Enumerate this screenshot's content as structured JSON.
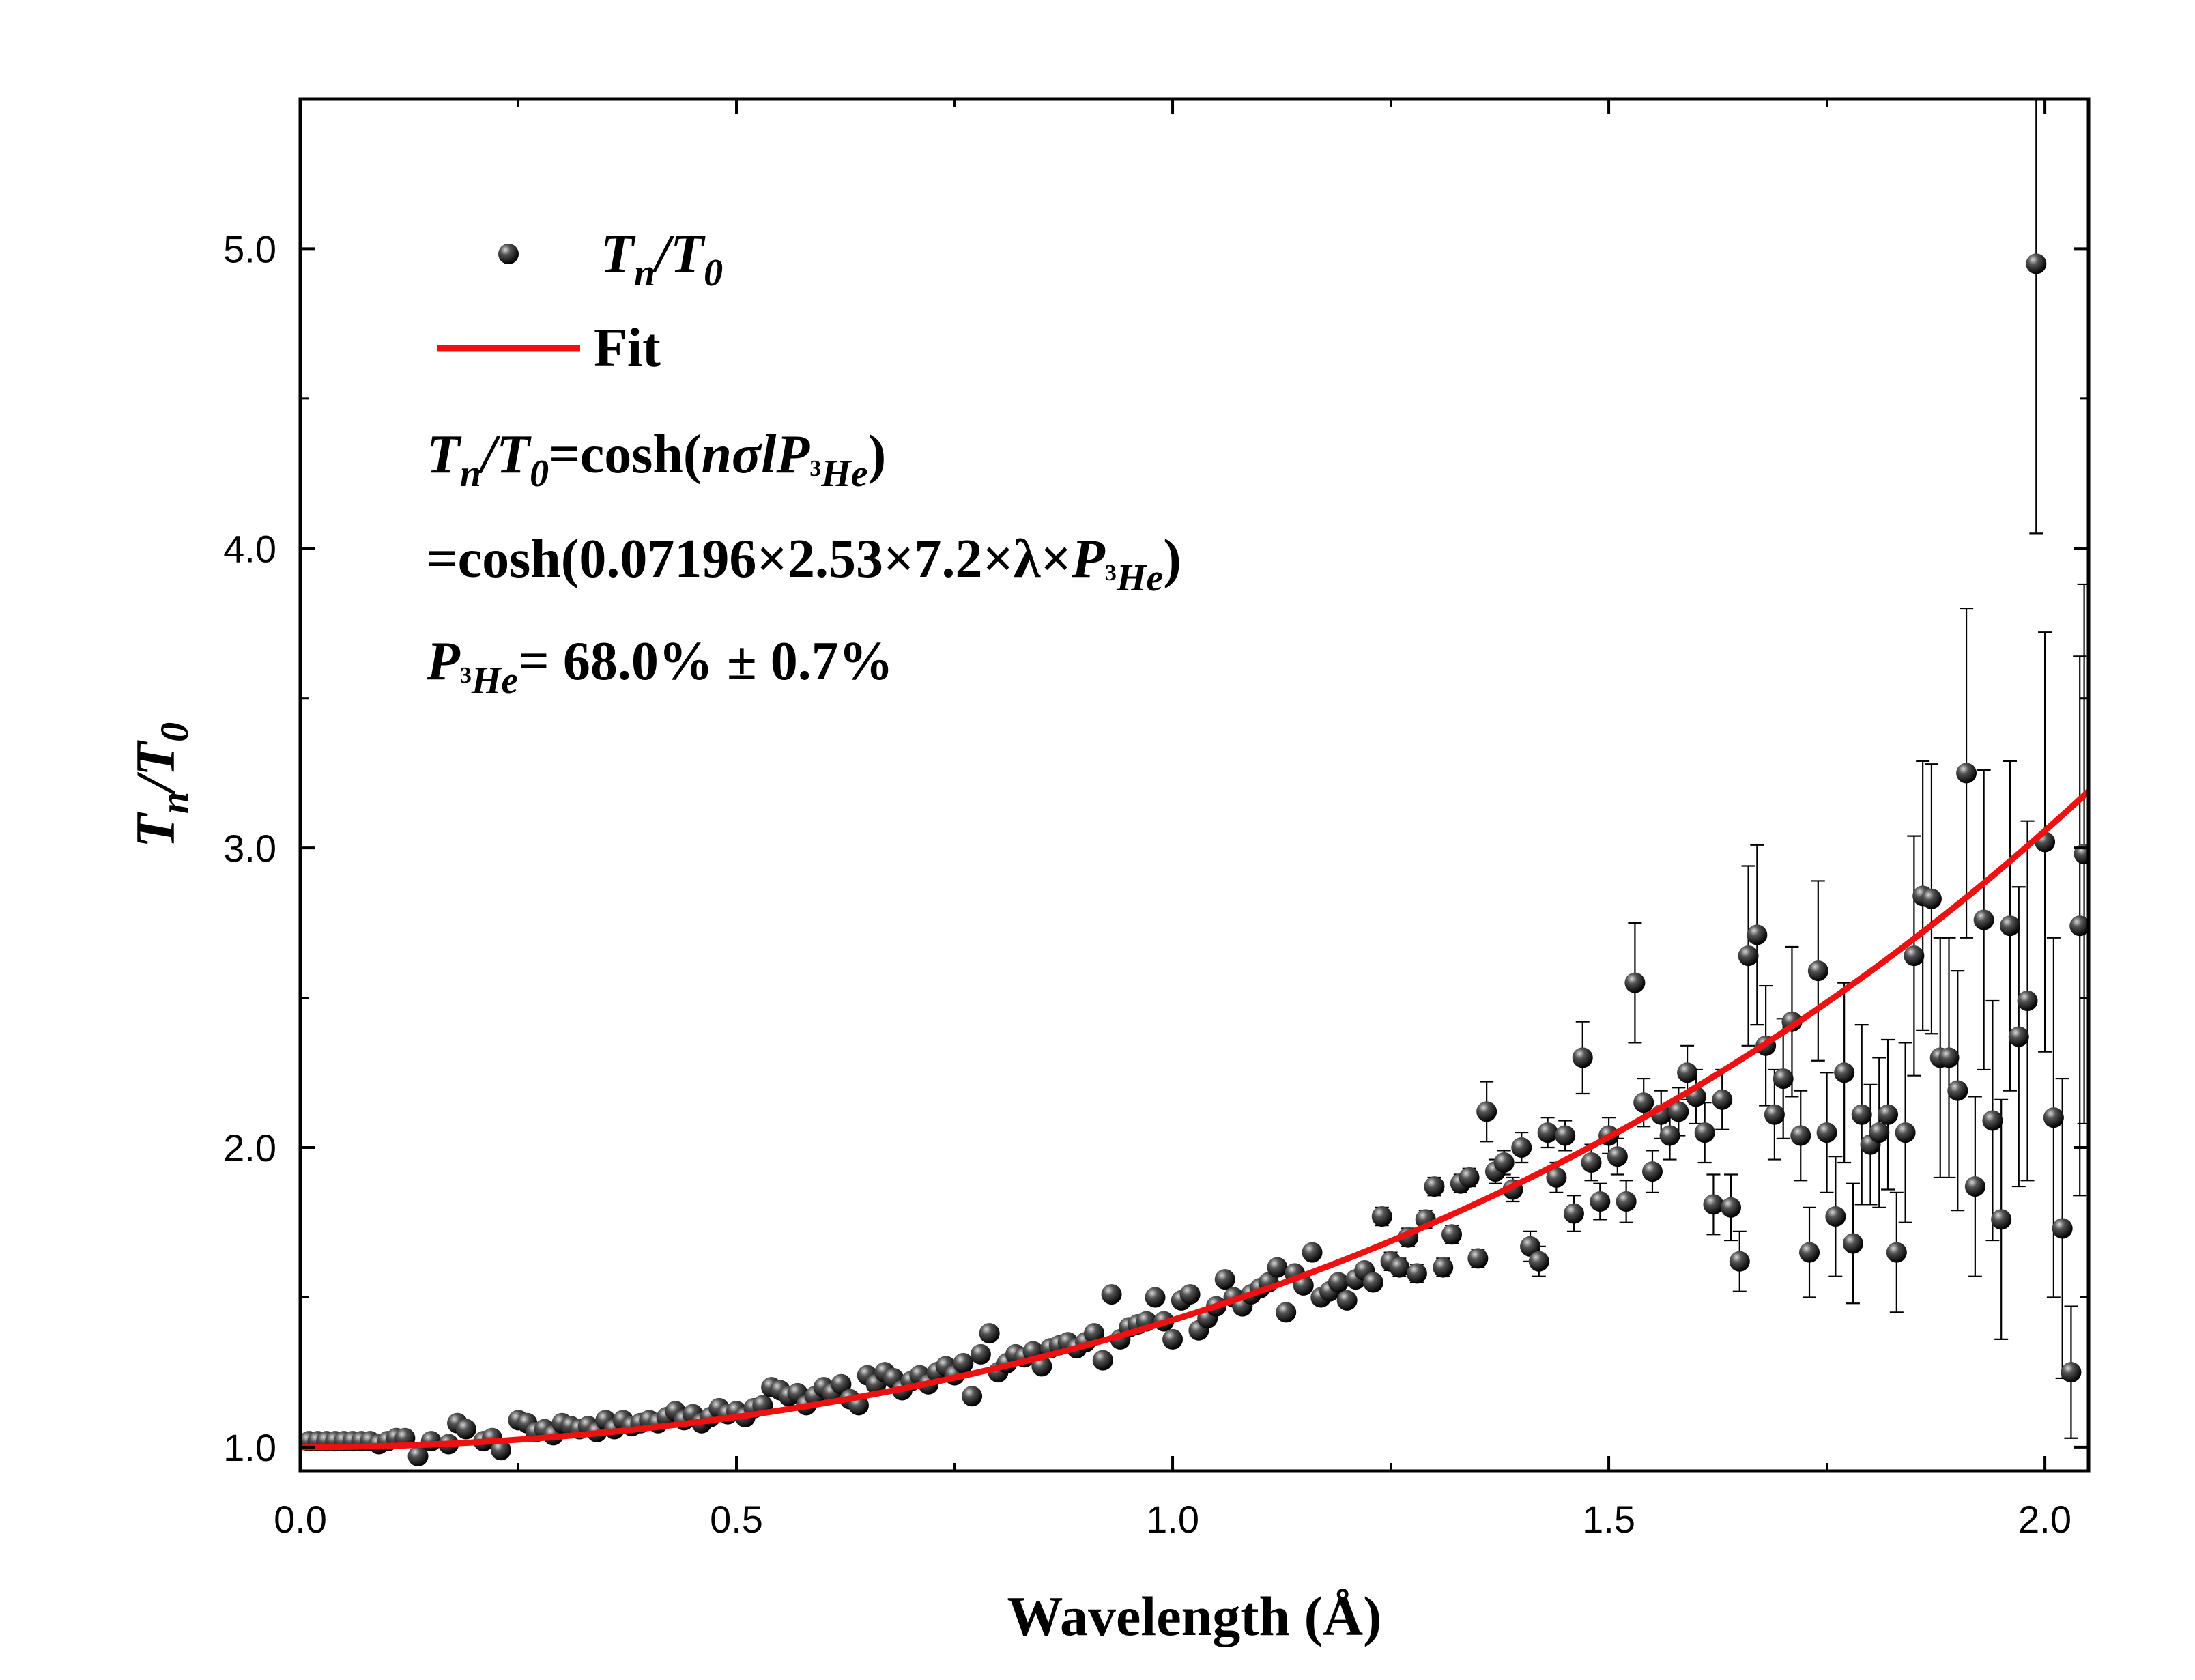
{
  "chart_data": {
    "type": "scatter",
    "title": "",
    "xlabel": "Wavelength (Å)",
    "ylabel": {
      "main": "T",
      "sub_n": "n",
      "slash": "/",
      "main2": "T",
      "sub_0": "0"
    },
    "xlim": [
      0.0,
      2.05
    ],
    "ylim": [
      0.92,
      5.5
    ],
    "x_ticks": [
      0.0,
      0.5,
      1.0,
      1.5,
      2.0
    ],
    "x_tick_labels": [
      "0.0",
      "0.5",
      "1.0",
      "1.5",
      "2.0"
    ],
    "y_ticks": [
      1.0,
      2.0,
      3.0,
      4.0,
      5.0
    ],
    "y_tick_labels": [
      "1.0",
      "2.0",
      "3.0",
      "4.0",
      "5.0"
    ],
    "grid": false,
    "legend_position": "top-left",
    "legend": [
      {
        "label_main": "T",
        "label_sub": "n",
        "label_mid": "/T",
        "label_sub2": "0",
        "kind": "marker",
        "color": "#111111"
      },
      {
        "label": "Fit",
        "kind": "line",
        "color": "#ee1111"
      }
    ],
    "annotations": {
      "line1": {
        "a": "T",
        "b": "n",
        "c": "/T",
        "d": "0",
        "e": "=cosh(",
        "f": "nσl",
        "g": "P",
        "h": "3",
        "i": "He",
        "j": ")"
      },
      "line2": {
        "a": "=cosh(0.07196×2.53×7.2×λ×",
        "b": "P",
        "c": "3",
        "d": "He",
        "e": ")"
      },
      "line3": {
        "a": "P",
        "b": "3",
        "c": "He",
        "d": "= 68.0% ± 0.7%"
      }
    },
    "fit": {
      "name": "Fit",
      "formula": "cosh(0.07196*2.53*7.2*lambda*P)",
      "P": 0.68,
      "coef": 0.07196,
      "coef2": 2.53,
      "coef3": 7.2,
      "color": "#ee1111"
    },
    "series": [
      {
        "name": "Tn/T0",
        "color": "#111111",
        "points": [
          [
            0.01,
            1.02,
            0.005
          ],
          [
            0.02,
            1.02,
            0.005
          ],
          [
            0.03,
            1.02,
            0.005
          ],
          [
            0.04,
            1.02,
            0.005
          ],
          [
            0.05,
            1.02,
            0.005
          ],
          [
            0.06,
            1.02,
            0.005
          ],
          [
            0.07,
            1.02,
            0.005
          ],
          [
            0.08,
            1.02,
            0.005
          ],
          [
            0.09,
            1.01,
            0.005
          ],
          [
            0.1,
            1.02,
            0.005
          ],
          [
            0.11,
            1.03,
            0.006
          ],
          [
            0.12,
            1.03,
            0.006
          ],
          [
            0.135,
            0.97,
            0.01
          ],
          [
            0.15,
            1.02,
            0.006
          ],
          [
            0.17,
            1.01,
            0.006
          ],
          [
            0.18,
            1.08,
            0.01
          ],
          [
            0.19,
            1.06,
            0.006
          ],
          [
            0.21,
            1.02,
            0.006
          ],
          [
            0.22,
            1.03,
            0.006
          ],
          [
            0.23,
            0.99,
            0.006
          ],
          [
            0.25,
            1.09,
            0.01
          ],
          [
            0.26,
            1.08,
            0.006
          ],
          [
            0.27,
            1.05,
            0.006
          ],
          [
            0.28,
            1.06,
            0.006
          ],
          [
            0.29,
            1.04,
            0.006
          ],
          [
            0.3,
            1.08,
            0.006
          ],
          [
            0.31,
            1.07,
            0.006
          ],
          [
            0.32,
            1.06,
            0.006
          ],
          [
            0.33,
            1.07,
            0.006
          ],
          [
            0.34,
            1.05,
            0.006
          ],
          [
            0.35,
            1.09,
            0.006
          ],
          [
            0.36,
            1.06,
            0.006
          ],
          [
            0.37,
            1.09,
            0.006
          ],
          [
            0.38,
            1.07,
            0.006
          ],
          [
            0.39,
            1.08,
            0.006
          ],
          [
            0.4,
            1.09,
            0.006
          ],
          [
            0.41,
            1.08,
            0.007
          ],
          [
            0.42,
            1.1,
            0.007
          ],
          [
            0.43,
            1.12,
            0.007
          ],
          [
            0.44,
            1.09,
            0.007
          ],
          [
            0.45,
            1.11,
            0.007
          ],
          [
            0.46,
            1.08,
            0.007
          ],
          [
            0.47,
            1.1,
            0.007
          ],
          [
            0.48,
            1.13,
            0.007
          ],
          [
            0.49,
            1.11,
            0.007
          ],
          [
            0.5,
            1.12,
            0.007
          ],
          [
            0.51,
            1.1,
            0.007
          ],
          [
            0.52,
            1.13,
            0.007
          ],
          [
            0.53,
            1.14,
            0.007
          ],
          [
            0.54,
            1.2,
            0.008
          ],
          [
            0.55,
            1.19,
            0.008
          ],
          [
            0.56,
            1.17,
            0.008
          ],
          [
            0.57,
            1.18,
            0.008
          ],
          [
            0.58,
            1.14,
            0.008
          ],
          [
            0.59,
            1.17,
            0.008
          ],
          [
            0.6,
            1.2,
            0.008
          ],
          [
            0.61,
            1.18,
            0.008
          ],
          [
            0.62,
            1.21,
            0.008
          ],
          [
            0.63,
            1.16,
            0.008
          ],
          [
            0.64,
            1.14,
            0.008
          ],
          [
            0.65,
            1.24,
            0.009
          ],
          [
            0.66,
            1.21,
            0.009
          ],
          [
            0.67,
            1.25,
            0.009
          ],
          [
            0.68,
            1.23,
            0.009
          ],
          [
            0.69,
            1.19,
            0.009
          ],
          [
            0.7,
            1.22,
            0.009
          ],
          [
            0.71,
            1.24,
            0.009
          ],
          [
            0.72,
            1.21,
            0.009
          ],
          [
            0.73,
            1.25,
            0.009
          ],
          [
            0.74,
            1.27,
            0.009
          ],
          [
            0.75,
            1.24,
            0.01
          ],
          [
            0.76,
            1.28,
            0.01
          ],
          [
            0.77,
            1.17,
            0.01
          ],
          [
            0.78,
            1.31,
            0.01
          ],
          [
            0.79,
            1.38,
            0.012
          ],
          [
            0.8,
            1.25,
            0.01
          ],
          [
            0.81,
            1.28,
            0.01
          ],
          [
            0.82,
            1.31,
            0.01
          ],
          [
            0.83,
            1.3,
            0.01
          ],
          [
            0.84,
            1.32,
            0.01
          ],
          [
            0.85,
            1.27,
            0.01
          ],
          [
            0.86,
            1.33,
            0.011
          ],
          [
            0.87,
            1.34,
            0.011
          ],
          [
            0.88,
            1.35,
            0.011
          ],
          [
            0.89,
            1.33,
            0.011
          ],
          [
            0.9,
            1.35,
            0.011
          ],
          [
            0.91,
            1.38,
            0.011
          ],
          [
            0.92,
            1.29,
            0.012
          ],
          [
            0.93,
            1.51,
            0.012
          ],
          [
            0.94,
            1.36,
            0.012
          ],
          [
            0.95,
            1.4,
            0.012
          ],
          [
            0.96,
            1.41,
            0.012
          ],
          [
            0.97,
            1.42,
            0.012
          ],
          [
            0.98,
            1.5,
            0.013
          ],
          [
            0.99,
            1.42,
            0.013
          ],
          [
            1.0,
            1.36,
            0.013
          ],
          [
            1.01,
            1.49,
            0.013
          ],
          [
            1.02,
            1.51,
            0.013
          ],
          [
            1.03,
            1.39,
            0.013
          ],
          [
            1.04,
            1.43,
            0.013
          ],
          [
            1.05,
            1.47,
            0.014
          ],
          [
            1.06,
            1.56,
            0.014
          ],
          [
            1.07,
            1.5,
            0.014
          ],
          [
            1.08,
            1.47,
            0.014
          ],
          [
            1.09,
            1.51,
            0.014
          ],
          [
            1.1,
            1.53,
            0.015
          ],
          [
            1.11,
            1.55,
            0.015
          ],
          [
            1.12,
            1.6,
            0.015
          ],
          [
            1.13,
            1.45,
            0.015
          ],
          [
            1.14,
            1.58,
            0.015
          ],
          [
            1.15,
            1.54,
            0.016
          ],
          [
            1.16,
            1.65,
            0.02
          ],
          [
            1.17,
            1.5,
            0.02
          ],
          [
            1.18,
            1.52,
            0.02
          ],
          [
            1.19,
            1.55,
            0.02
          ],
          [
            1.2,
            1.49,
            0.02
          ],
          [
            1.21,
            1.56,
            0.02
          ],
          [
            1.22,
            1.59,
            0.02
          ],
          [
            1.23,
            1.55,
            0.02
          ],
          [
            1.24,
            1.77,
            0.03
          ],
          [
            1.25,
            1.62,
            0.03
          ],
          [
            1.26,
            1.6,
            0.03
          ],
          [
            1.27,
            1.7,
            0.03
          ],
          [
            1.28,
            1.58,
            0.03
          ],
          [
            1.29,
            1.76,
            0.03
          ],
          [
            1.3,
            1.87,
            0.03
          ],
          [
            1.31,
            1.6,
            0.03
          ],
          [
            1.32,
            1.71,
            0.03
          ],
          [
            1.33,
            1.88,
            0.03
          ],
          [
            1.34,
            1.9,
            0.03
          ],
          [
            1.35,
            1.63,
            0.03
          ],
          [
            1.36,
            2.12,
            0.1
          ],
          [
            1.37,
            1.92,
            0.04
          ],
          [
            1.38,
            1.95,
            0.04
          ],
          [
            1.39,
            1.86,
            0.04
          ],
          [
            1.4,
            2.0,
            0.05
          ],
          [
            1.41,
            1.67,
            0.05
          ],
          [
            1.42,
            1.62,
            0.05
          ],
          [
            1.43,
            2.05,
            0.05
          ],
          [
            1.44,
            1.9,
            0.05
          ],
          [
            1.45,
            2.04,
            0.05
          ],
          [
            1.46,
            1.78,
            0.06
          ],
          [
            1.47,
            2.3,
            0.12
          ],
          [
            1.48,
            1.95,
            0.06
          ],
          [
            1.49,
            1.82,
            0.06
          ],
          [
            1.5,
            2.04,
            0.06
          ],
          [
            1.51,
            1.97,
            0.06
          ],
          [
            1.52,
            1.82,
            0.07
          ],
          [
            1.53,
            2.55,
            0.2
          ],
          [
            1.54,
            2.15,
            0.08
          ],
          [
            1.55,
            1.92,
            0.07
          ],
          [
            1.56,
            2.11,
            0.08
          ],
          [
            1.57,
            2.04,
            0.08
          ],
          [
            1.58,
            2.12,
            0.08
          ],
          [
            1.59,
            2.25,
            0.09
          ],
          [
            1.6,
            2.17,
            0.09
          ],
          [
            1.61,
            2.05,
            0.1
          ],
          [
            1.62,
            1.81,
            0.1
          ],
          [
            1.63,
            2.16,
            0.1
          ],
          [
            1.64,
            1.8,
            0.11
          ],
          [
            1.65,
            1.62,
            0.1
          ],
          [
            1.66,
            2.64,
            0.3
          ],
          [
            1.67,
            2.71,
            0.3
          ],
          [
            1.68,
            2.34,
            0.2
          ],
          [
            1.69,
            2.11,
            0.15
          ],
          [
            1.7,
            2.23,
            0.2
          ],
          [
            1.71,
            2.42,
            0.25
          ],
          [
            1.72,
            2.04,
            0.15
          ],
          [
            1.73,
            1.65,
            0.15
          ],
          [
            1.74,
            2.59,
            0.3
          ],
          [
            1.75,
            2.05,
            0.2
          ],
          [
            1.76,
            1.77,
            0.2
          ],
          [
            1.77,
            2.25,
            0.3
          ],
          [
            1.78,
            1.68,
            0.2
          ],
          [
            1.79,
            2.11,
            0.3
          ],
          [
            1.8,
            2.01,
            0.2
          ],
          [
            1.81,
            2.05,
            0.25
          ],
          [
            1.82,
            2.11,
            0.25
          ],
          [
            1.83,
            1.65,
            0.2
          ],
          [
            1.84,
            2.05,
            0.3
          ],
          [
            1.85,
            2.64,
            0.4
          ],
          [
            1.86,
            2.84,
            0.45
          ],
          [
            1.87,
            2.83,
            0.45
          ],
          [
            1.88,
            2.3,
            0.4
          ],
          [
            1.89,
            2.3,
            0.4
          ],
          [
            1.9,
            2.19,
            0.4
          ],
          [
            1.91,
            3.25,
            0.55
          ],
          [
            1.92,
            1.87,
            0.3
          ],
          [
            1.93,
            2.76,
            0.5
          ],
          [
            1.94,
            2.09,
            0.4
          ],
          [
            1.95,
            1.76,
            0.4
          ],
          [
            1.96,
            2.74,
            0.55
          ],
          [
            1.97,
            2.37,
            0.5
          ],
          [
            1.98,
            2.49,
            0.6
          ],
          [
            1.99,
            4.95,
            0.9
          ],
          [
            2.0,
            3.02,
            0.7
          ],
          [
            2.01,
            2.1,
            0.6
          ],
          [
            2.02,
            1.73,
            0.5
          ],
          [
            2.03,
            1.25,
            0.22
          ],
          [
            2.04,
            2.74,
            0.9
          ],
          [
            2.045,
            2.98,
            0.9
          ]
        ]
      }
    ]
  }
}
